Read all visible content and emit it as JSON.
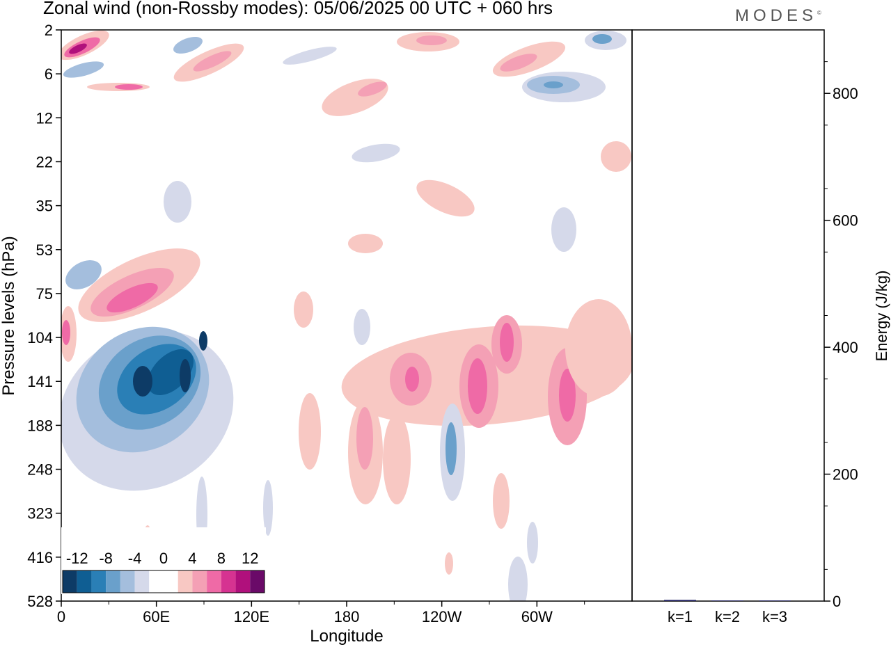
{
  "header": {
    "title": "Zonal wind (non-Rossby modes):  05/06/2025  00 UTC  + 060 hrs",
    "brand": "MODES",
    "brand_mark": "©"
  },
  "chart_data": [
    {
      "type": "heatmap",
      "title": "Zonal wind (non-Rossby modes):  05/06/2025  00 UTC  + 060 hrs",
      "xlabel": "Longitude",
      "ylabel": "Pressure levels (hPa)",
      "x_ticks": [
        "0",
        "60E",
        "120E",
        "180",
        "120W",
        "60W"
      ],
      "x_range": [
        0,
        360
      ],
      "y_ticks": [
        "2",
        "6",
        "12",
        "22",
        "35",
        "53",
        "75",
        "104",
        "141",
        "188",
        "248",
        "323",
        "416",
        "528"
      ],
      "colorbar": {
        "labels": [
          "-12",
          "-8",
          "-4",
          "0",
          "4",
          "8",
          "12"
        ],
        "colors": [
          "#0d3b66",
          "#0f5e93",
          "#2a7fb6",
          "#6aa0cb",
          "#a4bedd",
          "#d5d9ea",
          "#ffffff",
          "#ffffff",
          "#f8c8c3",
          "#f4a0b5",
          "#ef6aa6",
          "#d63391",
          "#b0107c",
          "#6a0a68"
        ]
      },
      "features": [
        {
          "name": "negative jet core",
          "lon": [
            30,
            100
          ],
          "level": [
            75,
            248
          ],
          "min": -14
        },
        {
          "name": "positive band",
          "lon": [
            20,
            80
          ],
          "level": [
            53,
            104
          ],
          "max": 9
        },
        {
          "name": "positive cells",
          "lon": [
            180,
            330
          ],
          "level": [
            104,
            248
          ],
          "max": 9
        },
        {
          "name": "stratospheric positive",
          "lon": [
            0,
            30
          ],
          "level": [
            2,
            6
          ],
          "max": 10
        },
        {
          "name": "stratospheric negative",
          "lon": [
            300,
            340
          ],
          "level": [
            2,
            12
          ],
          "min": -6
        }
      ]
    },
    {
      "type": "bar",
      "ylabel": "Energy (J/kg)",
      "categories": [
        "k=1",
        "k=2",
        "k=3"
      ],
      "values": [
        2,
        1,
        1
      ],
      "y_ticks": [
        "0",
        "200",
        "400",
        "600",
        "800"
      ],
      "ylim": [
        0,
        900
      ],
      "bar_color": "#2b2b6b"
    }
  ]
}
